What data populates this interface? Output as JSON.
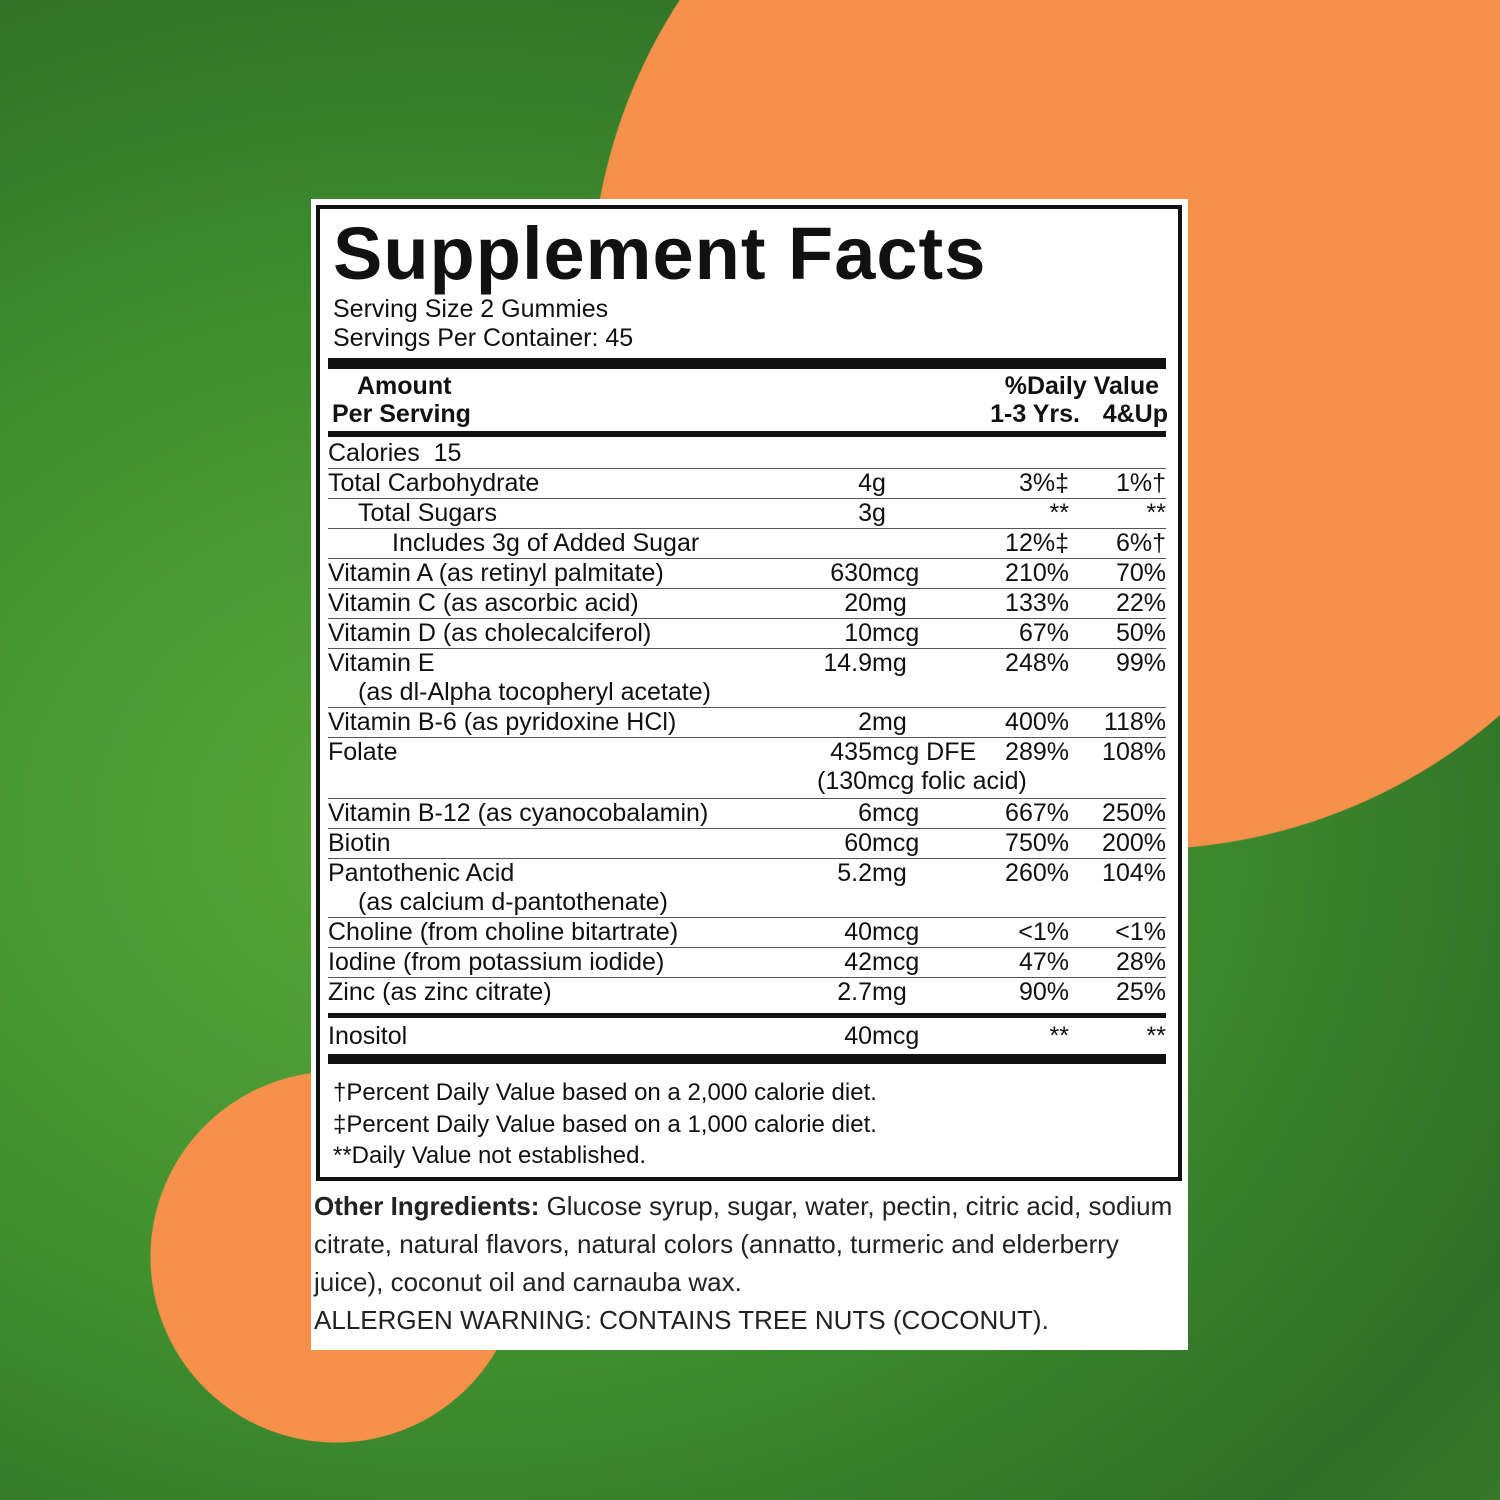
{
  "colors": {
    "orange": "#f7904b",
    "green": "#3f8f2e"
  },
  "title": "Supplement Facts",
  "serving_size": "Serving Size 2 Gummies",
  "servings_per_container": "Servings Per Container: 45",
  "header": {
    "amount": "Amount",
    "per_serving": "Per Serving",
    "daily_value": "%Daily Value",
    "col1": "1-3 Yrs.",
    "col2": "4&Up"
  },
  "calories": "Calories  15",
  "rows": [
    {
      "name": "Total Carbohydrate",
      "num": "4",
      "unit": "g",
      "dv1": "3%‡",
      "dv2": "1%†"
    },
    {
      "name": "Total Sugars",
      "indent": 1,
      "num": "3",
      "unit": "g",
      "dv1": "**",
      "dv2": "**"
    },
    {
      "name": "Includes 3g of Added Sugar",
      "indent": 2,
      "num": "",
      "unit": "",
      "dv1": "12%‡",
      "dv2": "6%†"
    },
    {
      "name": "Vitamin A (as retinyl palmitate)",
      "num": "630",
      "unit": "mcg",
      "dv1": "210%",
      "dv2": "70%"
    },
    {
      "name": "Vitamin C (as ascorbic acid)",
      "num": "20",
      "unit": "mg",
      "dv1": "133%",
      "dv2": "22%"
    },
    {
      "name": "Vitamin D (as cholecalciferol)",
      "num": "10",
      "unit": "mcg",
      "dv1": "67%",
      "dv2": "50%"
    },
    {
      "name": "Vitamin E",
      "sub": "(as dl-Alpha tocopheryl acetate)",
      "num": "14.9",
      "unit": "mg",
      "dv1": "248%",
      "dv2": "99%"
    },
    {
      "name": "Vitamin B-6 (as pyridoxine HCl)",
      "num": "2",
      "unit": "mg",
      "dv1": "400%",
      "dv2": "118%"
    },
    {
      "name": "Folate",
      "num": "435",
      "unit": "mcg DFE",
      "amt_sub": "(130mcg folic acid)",
      "dv1": "289%",
      "dv2": "108%"
    },
    {
      "name": "Vitamin B-12 (as cyanocobalamin)",
      "num": "6",
      "unit": "mcg",
      "dv1": "667%",
      "dv2": "250%"
    },
    {
      "name": "Biotin",
      "num": "60",
      "unit": "mcg",
      "dv1": "750%",
      "dv2": "200%"
    },
    {
      "name": "Pantothenic Acid",
      "sub": "(as calcium d-pantothenate)",
      "num": "5.2",
      "unit": "mg",
      "dv1": "260%",
      "dv2": "104%"
    },
    {
      "name": "Choline (from choline bitartrate)",
      "num": "40",
      "unit": "mcg",
      "dv1": "<1%",
      "dv2": "<1%"
    },
    {
      "name": "Iodine (from potassium iodide)",
      "num": "42",
      "unit": "mcg",
      "dv1": "47%",
      "dv2": "28%"
    },
    {
      "name": "Zinc (as zinc citrate)",
      "num": "2.7",
      "unit": "mg",
      "dv1": "90%",
      "dv2": "25%"
    }
  ],
  "inositol": {
    "name": "Inositol",
    "num": "40",
    "unit": "mcg",
    "dv1": "**",
    "dv2": "**"
  },
  "footnotes": [
    "†Percent Daily Value based on a 2,000 calorie diet.",
    "‡Percent Daily Value based on a 1,000 calorie diet.",
    "**Daily Value not established."
  ],
  "other_label": "Other Ingredients:",
  "other_text": " Glucose syrup, sugar, water, pectin, citric acid, sodium citrate, natural flavors, natural colors (annatto, turmeric and elderberry juice), coconut oil and carnauba wax.",
  "allergen": "ALLERGEN WARNING: CONTAINS TREE NUTS (COCONUT)."
}
